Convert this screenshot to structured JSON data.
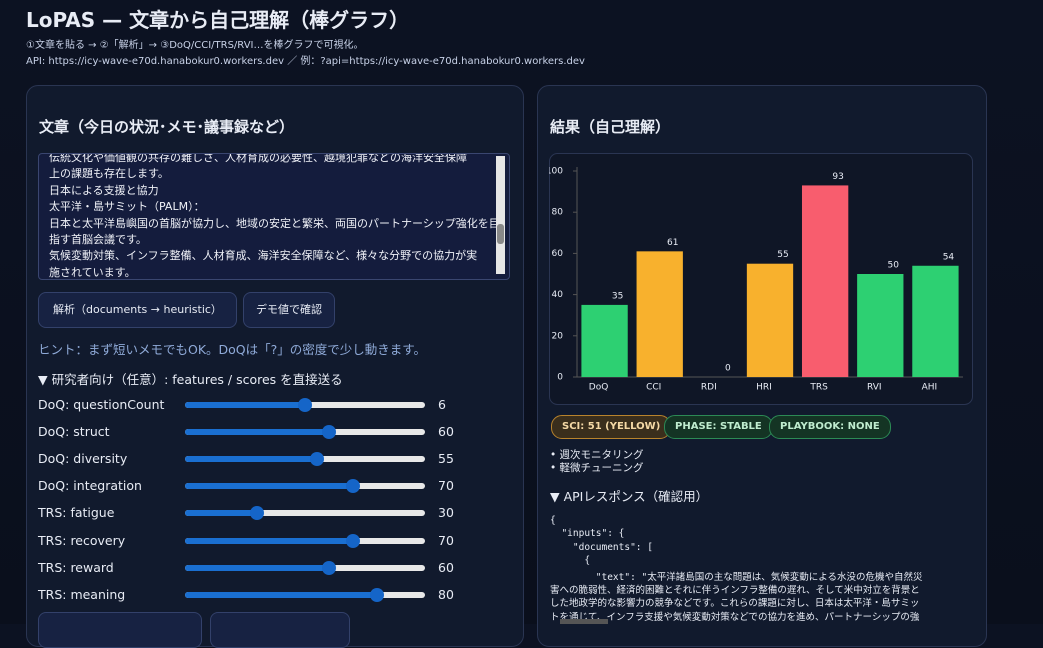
{
  "header": {
    "title": "LoPAS — 文章から自己理解（棒グラフ）",
    "lines": [
      "①文章を貼る → ②「解析」→ ③DoQ/CCI/TRS/RVI…を棒グラフで可視化。",
      "API: https://icy-wave-e70d.hanabokur0.workers.dev ／ 例：?api=https://icy-wave-e70d.hanabokur0.workers.dev"
    ]
  },
  "input_panel": {
    "title": "文章（今日の状況･メモ･議事録など）",
    "text_lines": [
      "伝統文化や価値観の共存の難しさ、人材育成の必要性、越境犯罪などの海洋安全保障",
      "上の課題も存在します。",
      "日本による支援と協力",
      "太平洋・島サミット（PALM）：",
      "日本と太平洋島嶼国の首脳が協力し、地域の安定と繁栄、両国のパートナーシップ強化を目",
      "指す首脳会議です。",
      "気候変動対策、インフラ整備、人材育成、海洋安全保障など、様々な分野での協力が実",
      "施されています。"
    ],
    "buttons": [
      "解析（documents → heuristic）",
      "デモ値で確認"
    ],
    "hint": "ヒント：まず短いメモでもOK。DoQは「?」の密度で少し動きます。",
    "advanced_summary": "▼ 研究者向け（任意）: features / scores を直接送る",
    "sliders": [
      {
        "label": "DoQ: questionCount",
        "value": 6,
        "range": [
          0,
          12
        ]
      },
      {
        "label": "DoQ: struct",
        "value": 60,
        "range": [
          0,
          100
        ]
      },
      {
        "label": "DoQ: diversity",
        "value": 55,
        "range": [
          0,
          100
        ]
      },
      {
        "label": "DoQ: integration",
        "value": 70,
        "range": [
          0,
          100
        ]
      },
      {
        "label": "TRS: fatigue",
        "value": 30,
        "range": [
          0,
          100
        ]
      },
      {
        "label": "TRS: recovery",
        "value": 70,
        "range": [
          0,
          100
        ]
      },
      {
        "label": "TRS: reward",
        "value": 60,
        "range": [
          0,
          100
        ]
      },
      {
        "label": "TRS: meaning",
        "value": 80,
        "range": [
          0,
          100
        ]
      }
    ]
  },
  "result_panel": {
    "title": "結果（自己理解）",
    "badges": [
      "SCI: 51 (YELLOW)",
      "PHASE: STABLE",
      "PLAYBOOK: NONE"
    ],
    "bullets": [
      "週次モニタリング",
      "軽微チューニング"
    ],
    "api_summary": "▼ APIレスポンス（確認用）",
    "json_lines": [
      "{",
      "  \"inputs\": {",
      "    \"documents\": [",
      "      {",
      "        \"text\": \"太平洋諸島国の主な問題は、気候変動による水没の危機や自然災",
      "害への脆弱性、経済的困難とそれに伴うインフラ整備の遅れ、そして米中対立を背景と",
      "した地政学的な影響力の競争などです。これらの課題に対し、日本は太平洋・島サミッ",
      "トを通じて、インフラ支援や気候変動対策などでの協力を進め、パートナーシップの強"
    ]
  },
  "chart_data": {
    "type": "bar",
    "categories": [
      "DoQ",
      "CCI",
      "RDI",
      "HRI",
      "TRS",
      "RVI",
      "AHI"
    ],
    "values": [
      35,
      61,
      0,
      55,
      93,
      50,
      54
    ],
    "colors": [
      "#2dd072",
      "#f8b12d",
      "#f8b12d",
      "#f8b12d",
      "#f85d6e",
      "#2dd072",
      "#2dd072"
    ],
    "ylim": [
      0,
      100
    ],
    "yticks": [
      0,
      20,
      40,
      60,
      80,
      100
    ],
    "grid": false
  }
}
